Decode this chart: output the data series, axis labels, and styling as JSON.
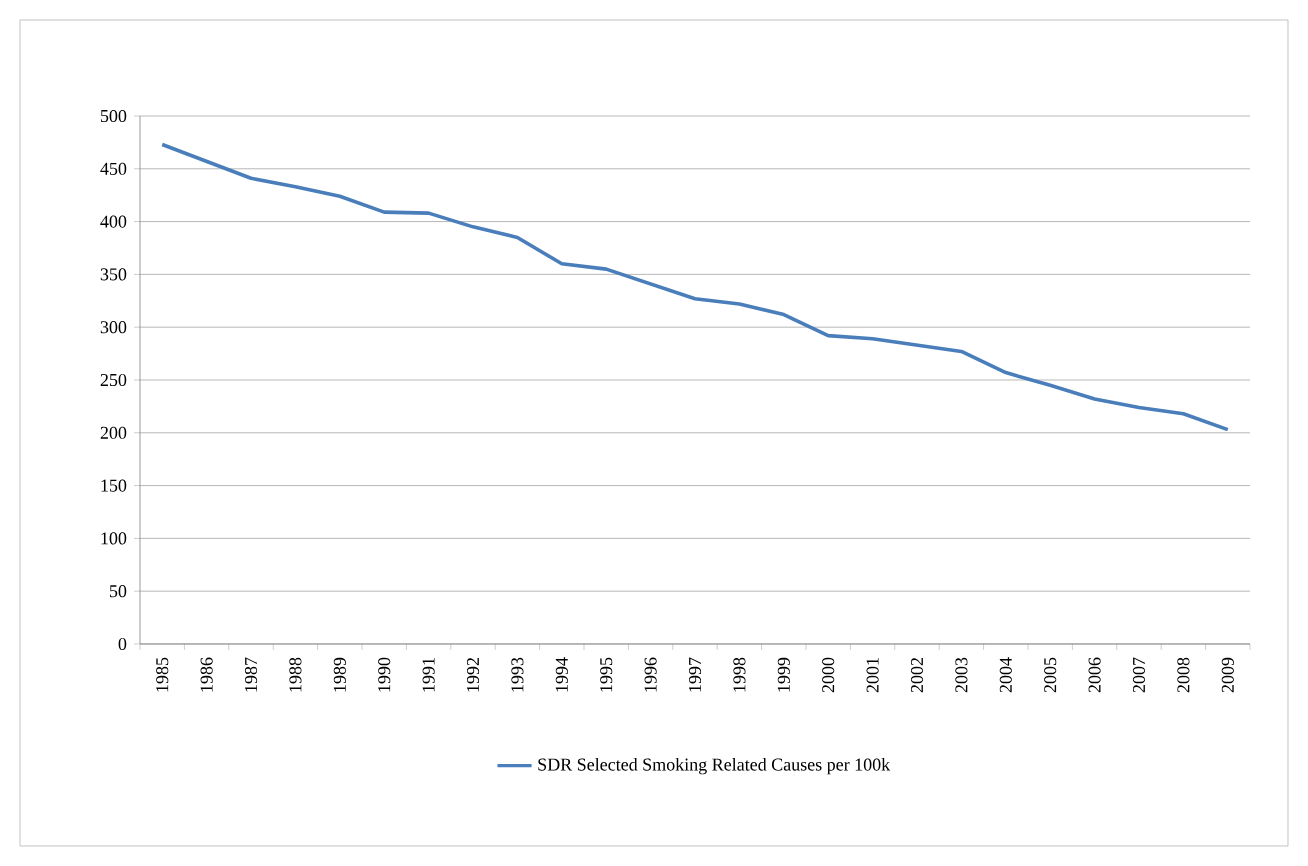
{
  "chart_data": {
    "type": "line",
    "categories": [
      "1985",
      "1986",
      "1987",
      "1988",
      "1989",
      "1990",
      "1991",
      "1992",
      "1993",
      "1994",
      "1995",
      "1996",
      "1997",
      "1998",
      "1999",
      "2000",
      "2001",
      "2002",
      "2003",
      "2004",
      "2005",
      "2006",
      "2007",
      "2008",
      "2009"
    ],
    "series": [
      {
        "name": "SDR Selected Smoking Related Causes per 100k",
        "color": "#4a7ebb",
        "values": [
          473,
          457,
          441,
          433,
          424,
          409,
          408,
          395,
          385,
          360,
          355,
          341,
          327,
          322,
          312,
          292,
          289,
          283,
          277,
          257,
          245,
          232,
          224,
          218,
          203
        ]
      }
    ],
    "ylim": [
      0,
      500
    ],
    "yticks": [
      0,
      50,
      100,
      150,
      200,
      250,
      300,
      350,
      400,
      450,
      500
    ],
    "grid": "y",
    "legend": "bottom",
    "marker": "none",
    "line_style": "solid"
  }
}
